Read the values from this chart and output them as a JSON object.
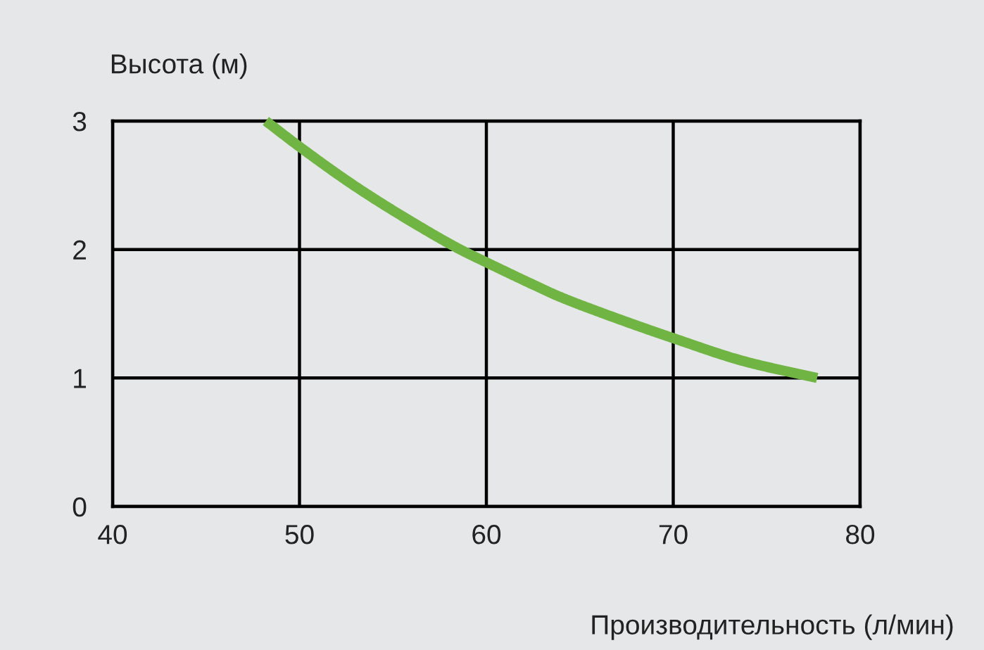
{
  "chart_data": {
    "type": "line",
    "xlabel": "Производительность (л/мин)",
    "ylabel": "Высота (м)",
    "x": [
      48.2,
      50,
      53,
      56.3,
      58.6,
      60,
      62.6,
      63.8,
      66.3,
      70,
      73.8,
      77.7
    ],
    "series": [
      {
        "color": "#70b544",
        "values": [
          3.0,
          2.8,
          2.49,
          2.19,
          2.0,
          1.9,
          1.72,
          1.64,
          1.5,
          1.31,
          1.13,
          1.0
        ]
      }
    ],
    "xlim": [
      40,
      80
    ],
    "ylim": [
      0,
      3
    ],
    "xticks": [
      40,
      50,
      60,
      70,
      80
    ],
    "yticks": [
      0,
      1,
      2,
      3
    ],
    "grid": true,
    "line_style": "solid"
  }
}
